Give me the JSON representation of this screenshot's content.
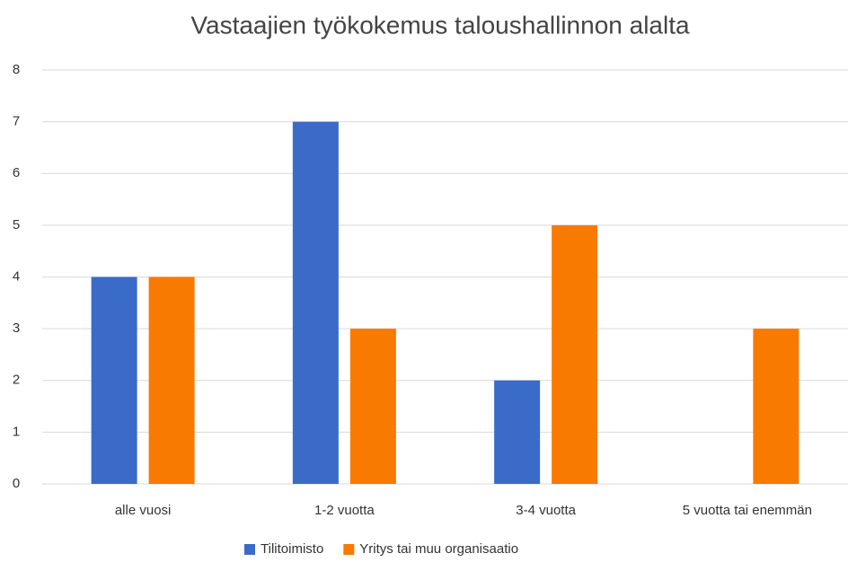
{
  "chart_data": {
    "type": "bar",
    "title": "Vastaajien työkokemus taloushallinnon alalta",
    "categories": [
      "alle vuosi",
      "1-2 vuotta",
      "3-4 vuotta",
      "5 vuotta tai enemmän"
    ],
    "series": [
      {
        "name": "Tilitoimisto",
        "color": "#3a6bc9",
        "values": [
          4,
          7,
          2,
          0
        ]
      },
      {
        "name": "Yritys tai muu organisaatio",
        "color": "#f97a00",
        "values": [
          4,
          3,
          5,
          3
        ]
      }
    ],
    "ylim": [
      0,
      8
    ],
    "yticks": [
      0,
      1,
      2,
      3,
      4,
      5,
      6,
      7,
      8
    ],
    "grid": true,
    "legend": "bottom"
  }
}
